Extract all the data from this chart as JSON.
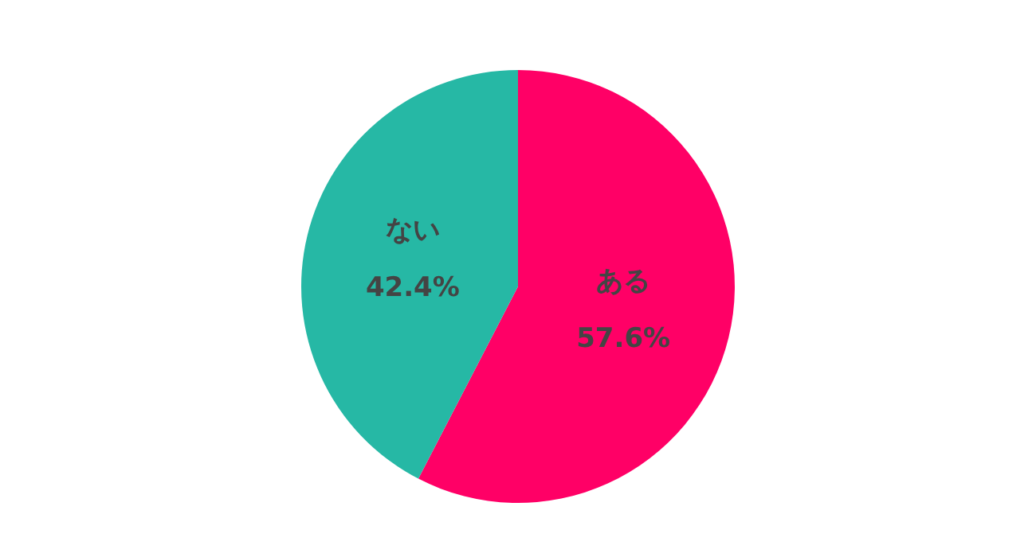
{
  "chart_data": {
    "type": "pie",
    "categories": [
      "ある",
      "ない"
    ],
    "values": [
      57.6,
      42.4
    ],
    "colors": [
      "#ff0066",
      "#26b8a5"
    ],
    "value_labels": [
      "57.6%",
      "42.4%"
    ],
    "legend": false
  }
}
